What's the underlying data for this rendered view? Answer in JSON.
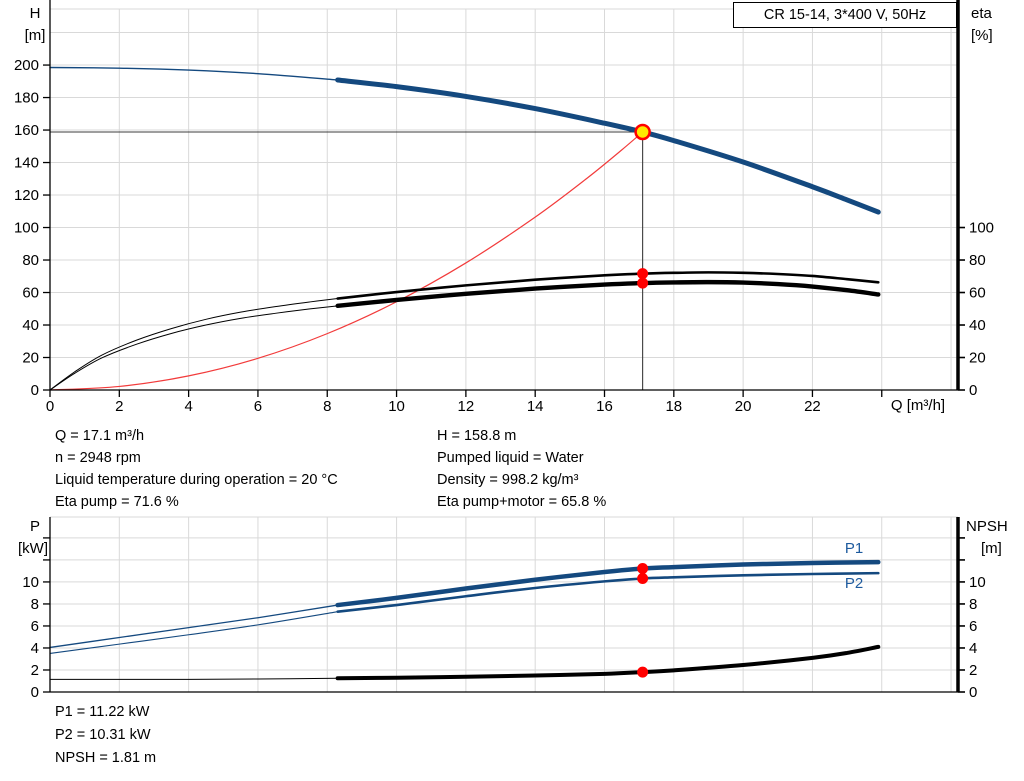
{
  "title_box": "CR 15-14, 3*400 V, 50Hz",
  "info_top_left": [
    "Q = 17.1 m³/h",
    "n = 2948 rpm",
    "Liquid temperature during operation = 20 °C",
    "Eta pump = 71.6 %"
  ],
  "info_top_right": [
    "H = 158.8 m",
    "Pumped liquid = Water",
    "Density = 998.2 kg/m³",
    "Eta pump+motor = 65.8 %"
  ],
  "info_bottom": [
    "P1 = 11.22 kW",
    "P2 = 10.31 kW",
    "NPSH = 1.81 m"
  ],
  "colors": {
    "curve_blue": "#14497f",
    "label_blue": "#1d5a9e",
    "black": "#000000",
    "red_dot": "#ff0000",
    "red_line": "#f23b3b",
    "duty_fill": "#ffe800",
    "grid": "#d9d9d9",
    "crosshair": "#3c3c3c"
  },
  "chart_data": [
    {
      "type": "line",
      "title": "CR 15-14, 3*400 V, 50Hz",
      "x_axis": {
        "label": "Q [m³/h]",
        "min": 0,
        "max": 26.2,
        "grid_values": [
          2,
          4,
          6,
          8,
          10,
          12,
          14,
          16,
          18,
          20,
          22,
          24,
          26
        ],
        "tick_values": [
          0,
          2,
          4,
          6,
          8,
          10,
          12,
          14,
          16,
          18,
          20,
          22,
          24
        ],
        "tick_labels": [
          "0",
          "2",
          "4",
          "6",
          "8",
          "10",
          "12",
          "14",
          "16",
          "18",
          "20",
          "22",
          ""
        ]
      },
      "y_left_axis": {
        "label_lines": [
          "H",
          "[m]"
        ],
        "min": 0,
        "max": 234.5,
        "grid_values": [
          20,
          40,
          60,
          80,
          100,
          120,
          140,
          160,
          180,
          200,
          220
        ],
        "tick_values": [
          0,
          20,
          40,
          60,
          80,
          100,
          120,
          140,
          160,
          180,
          200
        ],
        "tick_labels": [
          "0",
          "20",
          "40",
          "60",
          "80",
          "100",
          "120",
          "140",
          "160",
          "180",
          "200"
        ]
      },
      "y_right_axis": {
        "label_lines": [
          "eta",
          "[%]"
        ],
        "tick_values": [
          0,
          20,
          40,
          60,
          80,
          100
        ],
        "tick_labels": [
          "0",
          "20",
          "40",
          "60",
          "80",
          "100"
        ]
      },
      "series": [
        {
          "name": "system-curve",
          "color": "#f23b3b",
          "thin_width": 1.2,
          "points": [
            [
              0,
              0
            ],
            [
              2,
              2.2
            ],
            [
              4,
              8.7
            ],
            [
              6,
              19.5
            ],
            [
              8,
              34.7
            ],
            [
              10,
              54.3
            ],
            [
              12,
              78.2
            ],
            [
              14,
              106.4
            ],
            [
              15.5,
              130.4
            ],
            [
              16.5,
              147.8
            ],
            [
              17.1,
              158.8
            ]
          ]
        },
        {
          "name": "H-pump-curve",
          "color": "#14497f",
          "thin_width": 1.4,
          "thick_width": 5,
          "thick_from": 8.3,
          "points": [
            [
              0,
              198.5
            ],
            [
              2,
              198.1
            ],
            [
              4,
              196.9
            ],
            [
              6,
              194.7
            ],
            [
              8.3,
              190.8
            ],
            [
              10,
              186.7
            ],
            [
              12,
              180.7
            ],
            [
              14,
              173.2
            ],
            [
              16,
              164.2
            ],
            [
              17.1,
              158.8
            ],
            [
              18,
              153.5
            ],
            [
              20,
              140.3
            ],
            [
              22,
              125.1
            ],
            [
              23,
              117
            ],
            [
              23.9,
              109.5
            ]
          ]
        },
        {
          "name": "eta-pump-curve",
          "color": "#000000",
          "thin_width": 1,
          "thick_width": 2.6,
          "thick_from": 8.3,
          "points": [
            [
              0,
              0
            ],
            [
              0.7,
              11
            ],
            [
              1.5,
              21.5
            ],
            [
              2.5,
              30.7
            ],
            [
              3.5,
              37.8
            ],
            [
              4.5,
              43.5
            ],
            [
              5.5,
              47.9
            ],
            [
              6.5,
              51.3
            ],
            [
              7.5,
              54.2
            ],
            [
              8.3,
              56.3
            ],
            [
              10,
              60.3
            ],
            [
              12,
              64.4
            ],
            [
              14,
              67.9
            ],
            [
              16,
              70.6
            ],
            [
              17.1,
              71.6
            ],
            [
              18,
              72.1
            ],
            [
              19,
              72.4
            ],
            [
              20,
              72.1
            ],
            [
              21,
              71.4
            ],
            [
              22,
              70.2
            ],
            [
              23,
              68.2
            ],
            [
              23.9,
              66.3
            ]
          ]
        },
        {
          "name": "eta-pump-motor-curve",
          "color": "#000000",
          "thin_width": 1,
          "thick_width": 4.4,
          "thick_from": 8.3,
          "points": [
            [
              0,
              0
            ],
            [
              0.7,
              10.1
            ],
            [
              1.5,
              19.8
            ],
            [
              2.5,
              28.2
            ],
            [
              3.5,
              34.8
            ],
            [
              4.5,
              40
            ],
            [
              5.5,
              44.1
            ],
            [
              6.5,
              47.2
            ],
            [
              7.5,
              49.9
            ],
            [
              8.3,
              51.8
            ],
            [
              10,
              55.4
            ],
            [
              12,
              59.2
            ],
            [
              14,
              62.4
            ],
            [
              16,
              64.9
            ],
            [
              17.1,
              65.8
            ],
            [
              18,
              66.2
            ],
            [
              19,
              66.4
            ],
            [
              20,
              66.1
            ],
            [
              21,
              65.2
            ],
            [
              22,
              63.7
            ],
            [
              23,
              61.4
            ],
            [
              23.9,
              58.8
            ]
          ]
        }
      ],
      "crosshair": {
        "q": 17.1,
        "value": 158.8
      },
      "duty_point": {
        "q": 17.1,
        "value": 158.8
      },
      "dots": [
        {
          "q": 17.1,
          "value": 71.6
        },
        {
          "q": 17.1,
          "value": 65.8
        }
      ]
    },
    {
      "type": "line",
      "x_axis": {
        "min": 0,
        "max": 26.2,
        "grid_values": [
          2,
          4,
          6,
          8,
          10,
          12,
          14,
          16,
          18,
          20,
          22,
          24,
          26
        ],
        "tick_values": [],
        "tick_labels": []
      },
      "y_left_axis": {
        "label_lines": [
          "P",
          "[kW]"
        ],
        "min": 0,
        "max": 15.9,
        "grid_values": [
          2,
          4,
          6,
          8,
          10,
          12,
          14
        ],
        "tick_values": [
          0,
          2,
          4,
          6,
          8,
          10,
          12,
          14
        ],
        "tick_labels": [
          "0",
          "2",
          "4",
          "6",
          "8",
          "10",
          "",
          ""
        ]
      },
      "y_right_axis": {
        "label_lines": [
          "NPSH",
          "[m]"
        ],
        "tick_values": [
          0,
          2,
          4,
          6,
          8,
          10,
          12,
          14
        ],
        "tick_labels": [
          "0",
          "2",
          "4",
          "6",
          "8",
          "10",
          "",
          ""
        ]
      },
      "series": [
        {
          "name": "P1-curve",
          "color": "#14497f",
          "thin_width": 1.3,
          "thick_width": 4.5,
          "thick_from": 8.3,
          "label": {
            "text": "P1",
            "q": 23.2,
            "value": 12.63,
            "color": "#1d5a9e"
          },
          "points": [
            [
              0,
              4.05
            ],
            [
              2,
              4.95
            ],
            [
              4,
              5.85
            ],
            [
              6,
              6.75
            ],
            [
              8.3,
              7.9
            ],
            [
              10,
              8.55
            ],
            [
              12,
              9.4
            ],
            [
              14,
              10.2
            ],
            [
              16,
              10.9
            ],
            [
              17.1,
              11.22
            ],
            [
              18,
              11.35
            ],
            [
              20,
              11.58
            ],
            [
              22,
              11.72
            ],
            [
              23.9,
              11.8
            ]
          ]
        },
        {
          "name": "P2-curve",
          "color": "#14497f",
          "thin_width": 1.1,
          "thick_width": 2.6,
          "thick_from": 8.3,
          "label": {
            "text": "P2",
            "q": 23.2,
            "value": 9.45,
            "color": "#1d5a9e"
          },
          "points": [
            [
              0,
              3.5
            ],
            [
              2,
              4.35
            ],
            [
              4,
              5.2
            ],
            [
              6,
              6.1
            ],
            [
              8.3,
              7.3
            ],
            [
              10,
              7.9
            ],
            [
              12,
              8.7
            ],
            [
              14,
              9.45
            ],
            [
              16,
              10.05
            ],
            [
              17.1,
              10.31
            ],
            [
              18,
              10.42
            ],
            [
              20,
              10.6
            ],
            [
              22,
              10.72
            ],
            [
              23.9,
              10.8
            ]
          ]
        },
        {
          "name": "NPSH-curve",
          "color": "#000000",
          "thin_width": 1,
          "thick_width": 4,
          "thick_from": 8.3,
          "points": [
            [
              0,
              1.15
            ],
            [
              2,
              1.15
            ],
            [
              4,
              1.15
            ],
            [
              6,
              1.18
            ],
            [
              8.3,
              1.25
            ],
            [
              10,
              1.3
            ],
            [
              12,
              1.38
            ],
            [
              14,
              1.5
            ],
            [
              16,
              1.65
            ],
            [
              17.1,
              1.81
            ],
            [
              18,
              1.97
            ],
            [
              20,
              2.45
            ],
            [
              22,
              3.1
            ],
            [
              23,
              3.55
            ],
            [
              23.9,
              4.1
            ]
          ]
        }
      ],
      "dots": [
        {
          "q": 17.1,
          "value": 11.22
        },
        {
          "q": 17.1,
          "value": 10.31
        },
        {
          "q": 17.1,
          "value": 1.81
        }
      ]
    }
  ]
}
